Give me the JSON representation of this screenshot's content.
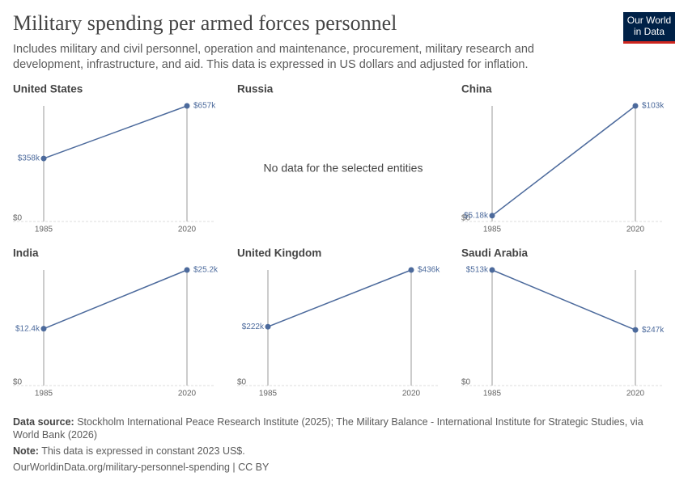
{
  "header": {
    "title": "Military spending per armed forces personnel",
    "subtitle": "Includes military and civil personnel, operation and maintenance, procurement, military research and development, infrastructure, and aid. This data is expressed in US dollars and adjusted for inflation.",
    "logo": "Our World in Data"
  },
  "chart_data": [
    {
      "type": "slope",
      "title": "United States",
      "x": [
        1985,
        2020
      ],
      "xlim": [
        1985,
        2020
      ],
      "values": [
        358000,
        657000
      ],
      "value_labels": [
        "$358k",
        "$657k"
      ],
      "ylim": [
        0,
        657000
      ],
      "yticks": [
        {
          "value": 0,
          "label": "$0"
        }
      ],
      "color": "#4c6a9c"
    },
    {
      "type": "slope",
      "title": "Russia",
      "annotation": "No data for the selected entities"
    },
    {
      "type": "slope",
      "title": "China",
      "x": [
        1985,
        2020
      ],
      "xlim": [
        1985,
        2020
      ],
      "values": [
        5180,
        103000
      ],
      "value_labels": [
        "$5.18k",
        "$103k"
      ],
      "ylim": [
        0,
        103000
      ],
      "yticks": [
        {
          "value": 0,
          "label": "$0"
        }
      ],
      "color": "#4c6a9c"
    },
    {
      "type": "slope",
      "title": "India",
      "x": [
        1985,
        2020
      ],
      "xlim": [
        1985,
        2020
      ],
      "values": [
        12400,
        25200
      ],
      "value_labels": [
        "$12.4k",
        "$25.2k"
      ],
      "ylim": [
        0,
        25200
      ],
      "yticks": [
        {
          "value": 0,
          "label": "$0"
        }
      ],
      "color": "#4c6a9c"
    },
    {
      "type": "slope",
      "title": "United Kingdom",
      "x": [
        1985,
        2020
      ],
      "xlim": [
        1985,
        2020
      ],
      "values": [
        222000,
        436000
      ],
      "value_labels": [
        "$222k",
        "$436k"
      ],
      "ylim": [
        0,
        436000
      ],
      "yticks": [
        {
          "value": 0,
          "label": "$0"
        }
      ],
      "color": "#4c6a9c"
    },
    {
      "type": "slope",
      "title": "Saudi Arabia",
      "x": [
        1985,
        2020
      ],
      "xlim": [
        1985,
        2020
      ],
      "values": [
        513000,
        247000
      ],
      "value_labels": [
        "$513k",
        "$247k"
      ],
      "ylim": [
        0,
        513000
      ],
      "yticks": [
        {
          "value": 0,
          "label": "$0"
        }
      ],
      "color": "#4c6a9c"
    }
  ],
  "footer": {
    "source_label": "Data source:",
    "source": "Stockholm International Peace Research Institute (2025); The Military Balance - International Institute for Strategic Studies, via World Bank (2026)",
    "note_label": "Note:",
    "note": "This data is expressed in constant 2023 US$.",
    "url": "OurWorldinData.org/military-personnel-spending | CC BY"
  }
}
